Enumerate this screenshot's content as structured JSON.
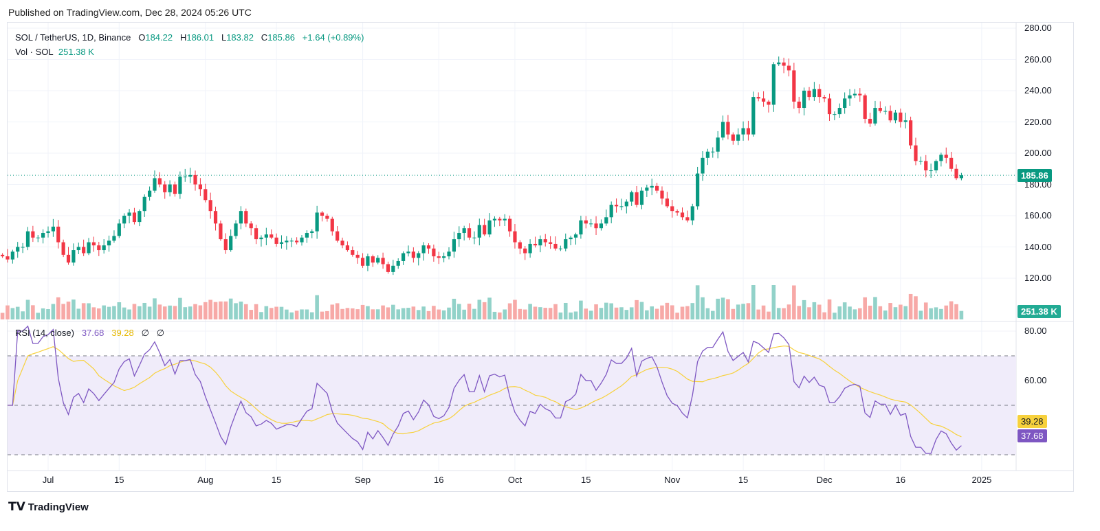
{
  "published": "Published on TradingView.com, Dec 28, 2024 05:26 UTC",
  "legend": {
    "symbol": "SOL / TetherUS, 1D, Binance",
    "o_label": "O",
    "o": "184.22",
    "h_label": "H",
    "h": "186.01",
    "l_label": "L",
    "l": "183.82",
    "c_label": "C",
    "c": "185.86",
    "change": "+1.64 (+0.89%)",
    "vol_label": "Vol · SOL",
    "vol": "251.38 K"
  },
  "rsi_legend": {
    "label": "RSI (14, close)",
    "rsi": "37.68",
    "ma": "39.28",
    "s1": "∅",
    "s2": "∅"
  },
  "badges": {
    "price": "185.86",
    "volume": "251.38 K",
    "rsi_ma": "39.28",
    "rsi": "37.68"
  },
  "colors": {
    "up": "#089981",
    "down": "#f23645",
    "rsi": "#7e57c2",
    "rsi_ma": "#f7d13c",
    "band": "#f0ecfa"
  },
  "logo": "TradingView",
  "chart_data": {
    "type": "candlestick",
    "start_date": "2024-06-22",
    "closes": [
      134,
      132,
      137,
      140,
      140,
      150,
      146,
      146,
      149,
      150,
      153,
      143,
      135,
      130,
      138,
      140,
      136,
      143,
      141,
      138,
      141,
      144,
      147,
      155,
      160,
      162,
      156,
      163,
      172,
      176,
      184,
      180,
      175,
      180,
      174,
      185,
      185,
      186,
      180,
      177,
      170,
      163,
      155,
      145,
      138,
      147,
      155,
      163,
      155,
      152,
      145,
      146,
      148,
      146,
      142,
      143,
      144,
      144,
      143,
      146,
      149,
      150,
      162,
      160,
      158,
      150,
      144,
      141,
      138,
      135,
      133,
      128,
      134,
      130,
      133,
      129,
      124,
      128,
      131,
      136,
      137,
      133,
      136,
      141,
      139,
      134,
      133,
      134,
      137,
      145,
      149,
      152,
      146,
      146,
      154,
      148,
      157,
      158,
      157,
      158,
      150,
      143,
      139,
      136,
      142,
      141,
      145,
      143,
      142,
      139,
      139,
      145,
      146,
      148,
      157,
      155,
      155,
      152,
      155,
      159,
      167,
      166,
      166,
      169,
      175,
      167,
      176,
      178,
      179,
      176,
      171,
      166,
      163,
      162,
      159,
      157,
      166,
      187,
      197,
      201,
      201,
      210,
      220,
      212,
      208,
      212,
      216,
      212,
      236,
      235,
      233,
      231,
      257,
      258,
      256,
      253,
      233,
      229,
      240,
      236,
      241,
      236,
      235,
      225,
      225,
      229,
      235,
      237,
      238,
      237,
      222,
      219,
      229,
      227,
      227,
      221,
      226,
      220,
      221,
      205,
      195,
      195,
      189,
      189,
      195,
      199,
      197,
      190,
      184,
      185.86
    ],
    "price_axis": [
      "280.00",
      "260.00",
      "240.00",
      "220.00",
      "200.00",
      "180.00",
      "160.00",
      "140.00",
      "120.00"
    ],
    "price_ticks": [
      280,
      260,
      240,
      220,
      200,
      180,
      160,
      140,
      120
    ],
    "rsi_axis": [
      "80.00",
      "60.00"
    ],
    "rsi_ticks": [
      80,
      60
    ],
    "rsi_bands": [
      70,
      50,
      30
    ],
    "x_labels": [
      {
        "t": "Jul",
        "d": "2024-07-01"
      },
      {
        "t": "15",
        "d": "2024-07-15"
      },
      {
        "t": "Aug",
        "d": "2024-08-01"
      },
      {
        "t": "15",
        "d": "2024-08-15"
      },
      {
        "t": "Sep",
        "d": "2024-09-01"
      },
      {
        "t": "16",
        "d": "2024-09-16"
      },
      {
        "t": "Oct",
        "d": "2024-10-01"
      },
      {
        "t": "15",
        "d": "2024-10-15"
      },
      {
        "t": "Nov",
        "d": "2024-11-01"
      },
      {
        "t": "15",
        "d": "2024-11-15"
      },
      {
        "t": "Dec",
        "d": "2024-12-01"
      },
      {
        "t": "16",
        "d": "2024-12-16"
      },
      {
        "t": "2025",
        "d": "2025-01-01"
      }
    ],
    "rsi_period": 14,
    "rsi_ma_period": 14
  }
}
